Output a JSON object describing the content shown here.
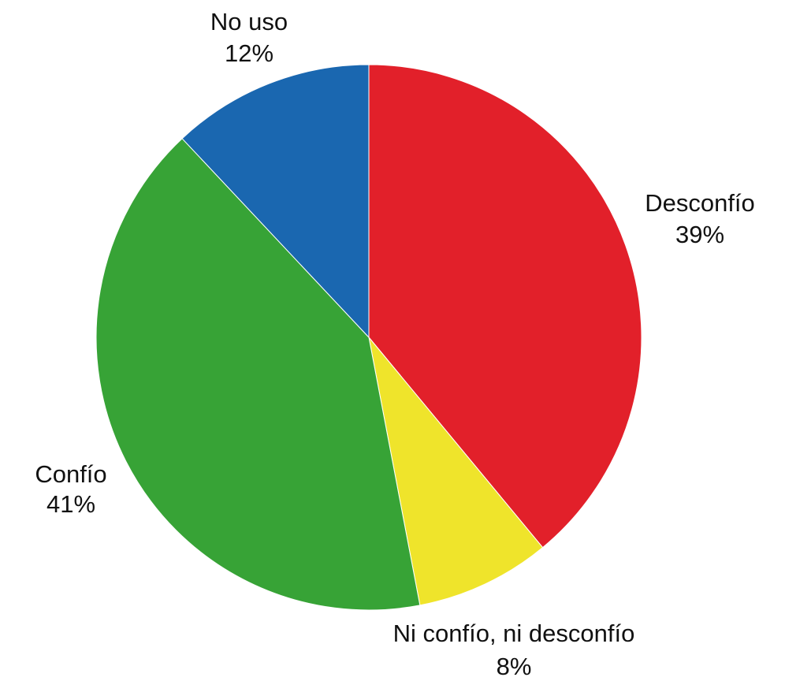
{
  "chart_data": {
    "type": "pie",
    "start_angle_deg": 0,
    "direction": "clockwise",
    "slices": [
      {
        "label": "Desconfío",
        "value": 39,
        "value_label": "39%",
        "color": "#e2202a"
      },
      {
        "label": "Ni confío, ni desconfío",
        "value": 8,
        "value_label": "8%",
        "color": "#efe42b"
      },
      {
        "label": "Confío",
        "value": 41,
        "value_label": "41%",
        "color": "#37a336"
      },
      {
        "label": "No uso",
        "value": 12,
        "value_label": "12%",
        "color": "#1a67b0"
      }
    ]
  }
}
